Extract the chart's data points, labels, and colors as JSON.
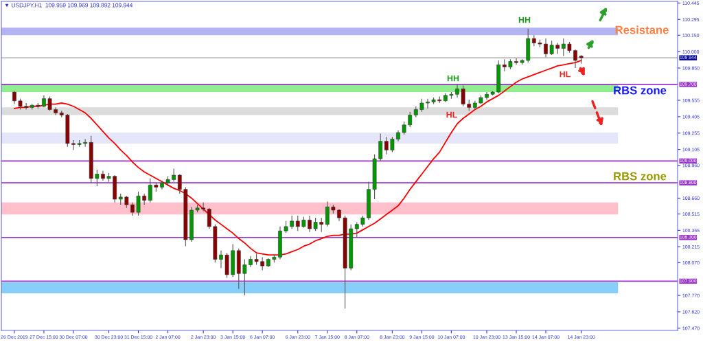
{
  "chart_data": {
    "type": "candlestick",
    "title": "▼ USDJPY,H1  109.959 109.969 109.892 109.944",
    "categories": [
      "26 Dec 2019",
      null,
      null,
      null,
      null,
      "27 Dec 15:00",
      null,
      null,
      null,
      null,
      "30 Dec 07:00",
      null,
      null,
      null,
      null,
      null,
      "30 Dec 23:00",
      null,
      null,
      null,
      null,
      "31 Dec 15:00",
      null,
      null,
      null,
      null,
      "2 Jan 07:00",
      null,
      null,
      null,
      null,
      null,
      "2 Jan 23:00",
      null,
      null,
      null,
      null,
      "3 Jan 15:00",
      null,
      null,
      null,
      null,
      "6 Jan 07:00",
      null,
      null,
      null,
      null,
      null,
      "6 Jan 23:00",
      null,
      null,
      null,
      null,
      "7 Jan 15:00",
      null,
      null,
      null,
      null,
      "8 Jan 07:00",
      null,
      null,
      null,
      null,
      null,
      "8 Jan 23:00",
      null,
      null,
      null,
      null,
      "9 Jan 15:00",
      null,
      null,
      null,
      null,
      "10 Jan 07:00",
      null,
      null,
      null,
      null,
      null,
      "10 Jan 23:00",
      null,
      null,
      null,
      null,
      "13 Jan 15:00",
      null,
      null,
      null,
      null,
      "14 Jan 07:00",
      null,
      null,
      null,
      null,
      null,
      "14 Jan 23:00"
    ],
    "ohlc": [
      [
        109.63,
        109.64,
        109.52,
        109.55
      ],
      [
        109.55,
        109.57,
        109.47,
        109.5
      ],
      [
        109.5,
        109.53,
        109.47,
        109.49
      ],
      [
        109.49,
        109.52,
        109.47,
        109.51
      ],
      [
        109.51,
        109.53,
        109.48,
        109.5
      ],
      [
        109.5,
        109.6,
        109.49,
        109.57
      ],
      [
        109.57,
        109.59,
        109.46,
        109.47
      ],
      [
        109.47,
        109.49,
        109.42,
        109.44
      ],
      [
        109.44,
        109.46,
        109.4,
        109.42
      ],
      [
        109.42,
        109.43,
        109.13,
        109.16
      ],
      [
        109.16,
        109.19,
        109.1,
        109.15
      ],
      [
        109.15,
        109.19,
        109.13,
        109.16
      ],
      [
        109.16,
        109.2,
        109.13,
        109.17
      ],
      [
        109.17,
        109.23,
        108.8,
        108.84
      ],
      [
        108.84,
        108.92,
        108.77,
        108.88
      ],
      [
        108.88,
        108.91,
        108.82,
        108.84
      ],
      [
        108.84,
        108.89,
        108.81,
        108.86
      ],
      [
        108.86,
        108.87,
        108.62,
        108.65
      ],
      [
        108.65,
        108.7,
        108.6,
        108.67
      ],
      [
        108.67,
        108.68,
        108.57,
        108.6
      ],
      [
        108.6,
        108.62,
        108.5,
        108.53
      ],
      [
        108.53,
        108.72,
        108.5,
        108.68
      ],
      [
        108.68,
        108.7,
        108.6,
        108.64
      ],
      [
        108.64,
        108.84,
        108.62,
        108.78
      ],
      [
        108.78,
        108.8,
        108.72,
        108.76
      ],
      [
        108.76,
        108.82,
        108.74,
        108.8
      ],
      [
        108.8,
        108.86,
        108.77,
        108.83
      ],
      [
        108.83,
        108.93,
        108.81,
        108.87
      ],
      [
        108.87,
        108.88,
        108.7,
        108.74
      ],
      [
        108.74,
        108.76,
        108.22,
        108.28
      ],
      [
        108.28,
        108.58,
        108.26,
        108.55
      ],
      [
        108.55,
        108.6,
        108.53,
        108.57
      ],
      [
        108.57,
        108.62,
        108.54,
        108.56
      ],
      [
        108.56,
        108.57,
        108.38,
        108.4
      ],
      [
        108.4,
        108.42,
        108.07,
        108.1
      ],
      [
        108.1,
        108.18,
        108.02,
        108.14
      ],
      [
        108.14,
        108.16,
        107.93,
        107.96
      ],
      [
        107.96,
        108.24,
        107.94,
        108.18
      ],
      [
        108.18,
        108.2,
        107.83,
        107.97
      ],
      [
        107.97,
        108.1,
        107.77,
        108.05
      ],
      [
        108.05,
        108.13,
        108.03,
        108.1
      ],
      [
        108.1,
        108.15,
        108.05,
        108.08
      ],
      [
        108.08,
        108.12,
        108.0,
        108.04
      ],
      [
        108.04,
        108.11,
        108.03,
        108.1
      ],
      [
        108.1,
        108.14,
        108.07,
        108.12
      ],
      [
        108.12,
        108.4,
        108.1,
        108.36
      ],
      [
        108.36,
        108.45,
        108.34,
        108.4
      ],
      [
        108.4,
        108.5,
        108.38,
        108.45
      ],
      [
        108.45,
        108.5,
        108.36,
        108.4
      ],
      [
        108.4,
        108.49,
        108.39,
        108.46
      ],
      [
        108.46,
        108.5,
        108.35,
        108.38
      ],
      [
        108.38,
        108.48,
        108.36,
        108.44
      ],
      [
        108.44,
        108.48,
        108.35,
        108.42
      ],
      [
        108.42,
        108.63,
        108.4,
        108.58
      ],
      [
        108.58,
        108.6,
        108.52,
        108.55
      ],
      [
        108.55,
        108.56,
        108.45,
        108.48
      ],
      [
        108.48,
        108.5,
        107.65,
        108.02
      ],
      [
        108.02,
        108.42,
        108.0,
        108.38
      ],
      [
        108.38,
        108.44,
        108.3,
        108.42
      ],
      [
        108.42,
        108.5,
        108.4,
        108.48
      ],
      [
        108.48,
        108.81,
        108.46,
        108.74
      ],
      [
        108.74,
        109.06,
        108.65,
        109.02
      ],
      [
        109.02,
        109.25,
        109.0,
        109.18
      ],
      [
        109.18,
        109.22,
        109.06,
        109.1
      ],
      [
        109.1,
        109.22,
        109.08,
        109.2
      ],
      [
        109.2,
        109.28,
        109.18,
        109.26
      ],
      [
        109.26,
        109.36,
        109.24,
        109.33
      ],
      [
        109.33,
        109.45,
        109.31,
        109.42
      ],
      [
        109.42,
        109.5,
        109.4,
        109.47
      ],
      [
        109.47,
        109.57,
        109.45,
        109.53
      ],
      [
        109.53,
        109.57,
        109.48,
        109.54
      ],
      [
        109.54,
        109.58,
        109.52,
        109.56
      ],
      [
        109.56,
        109.59,
        109.53,
        109.55
      ],
      [
        109.55,
        109.62,
        109.54,
        109.6
      ],
      [
        109.6,
        109.63,
        109.57,
        109.61
      ],
      [
        109.61,
        109.7,
        109.58,
        109.66
      ],
      [
        109.66,
        109.69,
        109.5,
        109.52
      ],
      [
        109.52,
        109.56,
        109.46,
        109.49
      ],
      [
        109.49,
        109.55,
        109.47,
        109.53
      ],
      [
        109.53,
        109.6,
        109.52,
        109.58
      ],
      [
        109.58,
        109.63,
        109.56,
        109.61
      ],
      [
        109.61,
        109.64,
        109.6,
        109.63
      ],
      [
        109.63,
        109.92,
        109.62,
        109.88
      ],
      [
        109.88,
        109.93,
        109.82,
        109.86
      ],
      [
        109.86,
        109.93,
        109.84,
        109.91
      ],
      [
        109.91,
        109.94,
        109.88,
        109.9
      ],
      [
        109.9,
        109.93,
        109.88,
        109.92
      ],
      [
        109.92,
        110.21,
        109.9,
        110.12
      ],
      [
        110.12,
        110.15,
        110.05,
        110.08
      ],
      [
        110.08,
        110.11,
        110.04,
        110.07
      ],
      [
        110.07,
        110.12,
        109.95,
        109.98
      ],
      [
        109.98,
        110.1,
        109.97,
        110.06
      ],
      [
        110.06,
        110.08,
        109.98,
        110.03
      ],
      [
        110.03,
        110.12,
        109.96,
        110.07
      ],
      [
        110.07,
        110.09,
        109.99,
        110.01
      ],
      [
        110.01,
        110.02,
        109.85,
        109.92
      ],
      [
        109.959,
        109.969,
        109.892,
        109.944
      ]
    ],
    "series": [
      {
        "type": "line",
        "color": "#ff0000",
        "values": [
          109.48,
          109.49,
          109.49,
          109.5,
          109.5,
          109.51,
          109.52,
          109.52,
          109.53,
          109.52,
          109.5,
          109.47,
          109.44,
          109.39,
          109.33,
          109.27,
          109.21,
          109.16,
          109.1,
          109.05,
          108.99,
          108.94,
          108.9,
          108.87,
          108.84,
          108.81,
          108.78,
          108.75,
          108.73,
          108.7,
          108.66,
          108.61,
          108.56,
          108.51,
          108.46,
          108.42,
          108.38,
          108.34,
          108.29,
          108.25,
          108.2,
          108.16,
          108.15,
          108.14,
          108.14,
          108.14,
          108.15,
          108.17,
          108.19,
          108.22,
          108.24,
          108.27,
          108.29,
          108.31,
          108.32,
          108.32,
          108.33,
          108.33,
          108.34,
          108.37,
          108.4,
          108.43,
          108.47,
          108.51,
          108.55,
          108.59,
          108.66,
          108.74,
          108.81,
          108.88,
          108.95,
          109.02,
          109.08,
          109.17,
          109.26,
          109.34,
          109.39,
          109.43,
          109.47,
          109.5,
          109.54,
          109.57,
          109.6,
          109.64,
          109.68,
          109.72,
          109.75,
          109.77,
          109.79,
          109.81,
          109.83,
          109.85,
          109.87,
          109.88,
          109.89,
          109.9,
          109.92
        ]
      }
    ],
    "ylim": [
      107.45,
      110.46
    ],
    "yticks": [
      {
        "value": 110.445,
        "label": "110.445"
      },
      {
        "value": 110.295,
        "label": "110.295"
      },
      {
        "value": 110.15,
        "label": "110.150"
      },
      {
        "value": 110.0,
        "label": "110.000"
      },
      {
        "value": 109.85,
        "label": "109.850"
      },
      {
        "value": 109.555,
        "label": "109.555"
      },
      {
        "value": 109.405,
        "label": "109.405"
      },
      {
        "value": 109.255,
        "label": "109.255"
      },
      {
        "value": 109.105,
        "label": "109.105"
      },
      {
        "value": 108.96,
        "label": "108.960"
      },
      {
        "value": 108.66,
        "label": "108.660"
      },
      {
        "value": 108.515,
        "label": "108.515"
      },
      {
        "value": 108.365,
        "label": "108.365"
      },
      {
        "value": 108.215,
        "label": "108.215"
      },
      {
        "value": 108.07,
        "label": "108.070"
      },
      {
        "value": 107.77,
        "label": "107.770"
      },
      {
        "value": 107.62,
        "label": "107.620"
      },
      {
        "value": 107.47,
        "label": "107.470"
      }
    ],
    "ref_lines": [
      {
        "axis": "y",
        "value": 109.7,
        "label": "109.700",
        "color": "#9933cc"
      },
      {
        "axis": "y",
        "value": 109.0,
        "label": "109.000",
        "color": "#9933cc"
      },
      {
        "axis": "y",
        "value": 108.8,
        "label": "108.800",
        "color": "#9933cc"
      },
      {
        "axis": "y",
        "value": 108.3,
        "label": "108.300",
        "color": "#9933cc"
      },
      {
        "axis": "y",
        "value": 107.9,
        "label": "107.900",
        "color": "#9933cc"
      },
      {
        "axis": "y",
        "value": 109.944,
        "label": "109.944",
        "color": "#a0a0a0"
      }
    ],
    "bands": [
      {
        "axis": "y",
        "from": 110.15,
        "to": 110.22,
        "color": "#b4b4f5"
      },
      {
        "axis": "y",
        "from": 109.63,
        "to": 109.7,
        "color": "#90ee90"
      },
      {
        "axis": "y",
        "from": 109.42,
        "to": 109.49,
        "color": "#dcdcdc"
      },
      {
        "axis": "y",
        "from": 109.16,
        "to": 109.26,
        "color": "#e6e6fa"
      },
      {
        "axis": "y",
        "from": 108.51,
        "to": 108.62,
        "color": "#ffc0cb"
      },
      {
        "axis": "y",
        "from": 107.79,
        "to": 107.89,
        "color": "#87cefa"
      }
    ],
    "annotations": [
      "HH",
      "HL",
      "HH",
      "HL",
      "Resistane",
      "RBS zone",
      "RBS zone"
    ],
    "grid": false,
    "legend": false
  }
}
